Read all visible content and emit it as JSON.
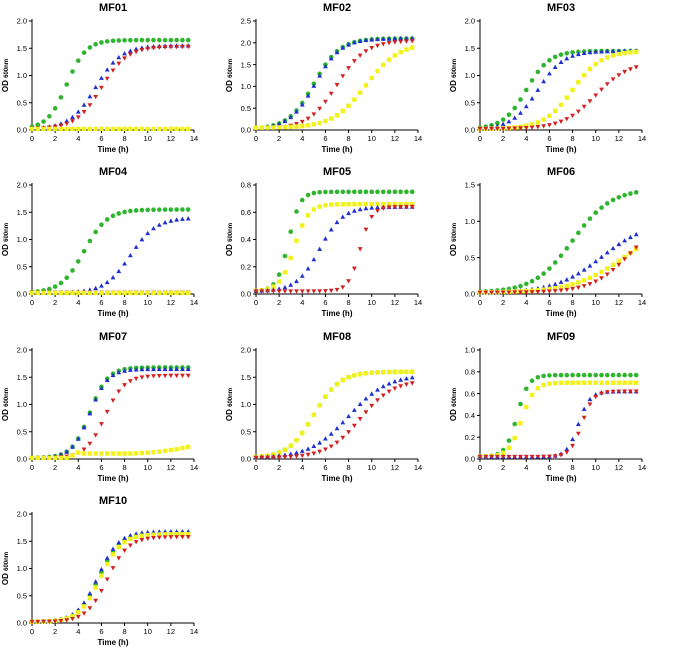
{
  "colors": {
    "green": "#2db52d",
    "blue": "#1f2fd1",
    "red": "#d42020",
    "yellow": "#f2f21a"
  },
  "axis_text": {
    "xlabel": "Time (h)",
    "ylabel_main": "OD",
    "ylabel_sub": "600nm"
  },
  "chart_data": [
    {
      "type": "scatter",
      "title": "MF01",
      "xlabel": "Time (h)",
      "ylabel": "OD 600nm",
      "xlim": [
        0,
        14
      ],
      "ylim": [
        0,
        2.0
      ],
      "xticks": [
        "0",
        "2",
        "4",
        "6",
        "8",
        "10",
        "12",
        "14"
      ],
      "yticks": [
        "0.0",
        "0.5",
        "1.0",
        "1.5",
        "2.0"
      ],
      "series": [
        {
          "name": "green",
          "model": {
            "type": "logistic",
            "K": 1.65,
            "r": 1.2,
            "t0": 3.0,
            "base": 0.02
          }
        },
        {
          "name": "blue",
          "model": {
            "type": "logistic",
            "K": 1.55,
            "r": 0.9,
            "t0": 5.5,
            "base": 0.02
          }
        },
        {
          "name": "red",
          "model": {
            "type": "logistic",
            "K": 1.53,
            "r": 0.9,
            "t0": 6.0,
            "base": 0.02
          }
        },
        {
          "name": "yellow",
          "model": {
            "type": "flat",
            "value": 0.02
          }
        }
      ]
    },
    {
      "type": "scatter",
      "title": "MF02",
      "xlabel": "Time (h)",
      "ylabel": "OD 600nm",
      "xlim": [
        0,
        14
      ],
      "ylim": [
        0,
        2.5
      ],
      "xticks": [
        "0",
        "2",
        "4",
        "6",
        "8",
        "10",
        "12",
        "14"
      ],
      "yticks": [
        "0.0",
        "0.5",
        "1.0",
        "1.5",
        "2.0",
        "2.5"
      ],
      "series": [
        {
          "name": "green",
          "model": {
            "type": "logistic",
            "K": 2.1,
            "r": 0.9,
            "t0": 5.0,
            "base": 0.02
          }
        },
        {
          "name": "blue",
          "model": {
            "type": "logistic",
            "K": 2.1,
            "r": 0.9,
            "t0": 5.1,
            "base": 0.02
          }
        },
        {
          "name": "red",
          "model": {
            "type": "logistic",
            "K": 2.05,
            "r": 0.8,
            "t0": 7.0,
            "base": 0.02
          }
        },
        {
          "name": "yellow",
          "model": {
            "type": "logistic",
            "K": 2.0,
            "r": 0.7,
            "t0": 9.5,
            "base": 0.05
          }
        }
      ]
    },
    {
      "type": "scatter",
      "title": "MF03",
      "xlabel": "Time (h)",
      "ylabel": "OD 600nm",
      "xlim": [
        0,
        14
      ],
      "ylim": [
        0,
        2.0
      ],
      "xticks": [
        "0",
        "2",
        "4",
        "6",
        "8",
        "10",
        "12",
        "14"
      ],
      "yticks": [
        "0.0",
        "0.5",
        "1.0",
        "1.5",
        "2.0"
      ],
      "series": [
        {
          "name": "green",
          "model": {
            "type": "logistic",
            "K": 1.45,
            "r": 1.0,
            "t0": 4.0,
            "base": 0.02
          }
        },
        {
          "name": "blue",
          "model": {
            "type": "logistic",
            "K": 1.45,
            "r": 0.9,
            "t0": 5.0,
            "base": 0.02
          }
        },
        {
          "name": "yellow",
          "model": {
            "type": "logistic",
            "K": 1.45,
            "r": 0.8,
            "t0": 8.0,
            "base": 0.02
          }
        },
        {
          "name": "red",
          "model": {
            "type": "logistic",
            "K": 1.25,
            "r": 0.7,
            "t0": 10.0,
            "base": 0.02
          }
        }
      ]
    },
    {
      "type": "scatter",
      "title": "MF04",
      "xlabel": "Time (h)",
      "ylabel": "OD 600nm",
      "xlim": [
        0,
        14
      ],
      "ylim": [
        0,
        2.0
      ],
      "xticks": [
        "0",
        "2",
        "4",
        "6",
        "8",
        "10",
        "12",
        "14"
      ],
      "yticks": [
        "0.0",
        "0.5",
        "1.0",
        "1.5",
        "2.0"
      ],
      "series": [
        {
          "name": "green",
          "model": {
            "type": "logistic",
            "K": 1.55,
            "r": 1.0,
            "t0": 4.5,
            "base": 0.02
          }
        },
        {
          "name": "blue",
          "model": {
            "type": "logistic",
            "K": 1.4,
            "r": 0.9,
            "t0": 8.5,
            "base": 0.02
          }
        },
        {
          "name": "red",
          "model": {
            "type": "flat",
            "value": 0.03
          }
        },
        {
          "name": "yellow",
          "model": {
            "type": "flat",
            "value": 0.02
          }
        }
      ]
    },
    {
      "type": "scatter",
      "title": "MF05",
      "xlabel": "Time (h)",
      "ylabel": "OD 600nm",
      "xlim": [
        0,
        14
      ],
      "ylim": [
        0,
        0.8
      ],
      "xticks": [
        "0",
        "2",
        "4",
        "6",
        "8",
        "10",
        "12",
        "14"
      ],
      "yticks": [
        "0.0",
        "0.2",
        "0.4",
        "0.6",
        "0.8"
      ],
      "series": [
        {
          "name": "green",
          "model": {
            "type": "logistic",
            "K": 0.75,
            "r": 2.0,
            "t0": 2.8,
            "base": 0.02
          }
        },
        {
          "name": "yellow",
          "model": {
            "type": "logistic",
            "K": 0.66,
            "r": 1.6,
            "t0": 3.3,
            "base": 0.02
          }
        },
        {
          "name": "blue",
          "model": {
            "type": "logistic",
            "K": 0.64,
            "r": 1.0,
            "t0": 5.5,
            "base": 0.02
          }
        },
        {
          "name": "red",
          "model": {
            "type": "logistic",
            "K": 0.64,
            "r": 2.0,
            "t0": 9.0,
            "base": 0.02
          }
        }
      ]
    },
    {
      "type": "scatter",
      "title": "MF06",
      "xlabel": "Time (h)",
      "ylabel": "OD 600nm",
      "xlim": [
        0,
        14
      ],
      "ylim": [
        0,
        1.5
      ],
      "xticks": [
        "0",
        "2",
        "4",
        "6",
        "8",
        "10",
        "12",
        "14"
      ],
      "yticks": [
        "0.0",
        "0.5",
        "1.0",
        "1.5"
      ],
      "series": [
        {
          "name": "green",
          "model": {
            "type": "logistic",
            "K": 1.45,
            "r": 0.6,
            "t0": 8.0,
            "base": 0.02
          }
        },
        {
          "name": "blue",
          "model": {
            "type": "logistic",
            "K": 1.0,
            "r": 0.5,
            "t0": 10.5,
            "base": 0.02
          }
        },
        {
          "name": "yellow",
          "model": {
            "type": "logistic",
            "K": 1.0,
            "r": 0.45,
            "t0": 12.5,
            "base": 0.02
          }
        },
        {
          "name": "red",
          "model": {
            "type": "logistic",
            "K": 1.1,
            "r": 0.6,
            "t0": 13.0,
            "base": 0.02
          }
        }
      ]
    },
    {
      "type": "scatter",
      "title": "MF07",
      "xlabel": "Time (h)",
      "ylabel": "OD 600nm",
      "xlim": [
        0,
        14
      ],
      "ylim": [
        0,
        2.0
      ],
      "xticks": [
        "0",
        "2",
        "4",
        "6",
        "8",
        "10",
        "12",
        "14"
      ],
      "yticks": [
        "0.0",
        "0.5",
        "1.0",
        "1.5",
        "2.0"
      ],
      "series": [
        {
          "name": "green",
          "model": {
            "type": "logistic",
            "K": 1.68,
            "r": 1.3,
            "t0": 5.0,
            "base": 0.02
          }
        },
        {
          "name": "blue",
          "model": {
            "type": "logistic",
            "K": 1.65,
            "r": 1.3,
            "t0": 5.0,
            "base": 0.02
          }
        },
        {
          "name": "red",
          "model": {
            "type": "logistic",
            "K": 1.53,
            "r": 1.2,
            "t0": 6.3,
            "base": 0.02
          }
        },
        {
          "name": "yellow",
          "model": {
            "type": "yellow07"
          }
        }
      ]
    },
    {
      "type": "scatter",
      "title": "MF08",
      "xlabel": "Time (h)",
      "ylabel": "OD 600nm",
      "xlim": [
        0,
        14
      ],
      "ylim": [
        0,
        2.0
      ],
      "xticks": [
        "0",
        "2",
        "4",
        "6",
        "8",
        "10",
        "12",
        "14"
      ],
      "yticks": [
        "0.0",
        "0.5",
        "1.0",
        "1.5",
        "2.0"
      ],
      "series": [
        {
          "name": "green",
          "model": {
            "type": "logistic",
            "K": 1.6,
            "r": 0.9,
            "t0": 5.0,
            "base": 0.02
          }
        },
        {
          "name": "yellow",
          "model": {
            "type": "logistic",
            "K": 1.6,
            "r": 0.9,
            "t0": 5.0,
            "base": 0.02
          }
        },
        {
          "name": "blue",
          "model": {
            "type": "logistic",
            "K": 1.55,
            "r": 0.6,
            "t0": 8.0,
            "base": 0.02
          }
        },
        {
          "name": "red",
          "model": {
            "type": "logistic",
            "K": 1.45,
            "r": 0.7,
            "t0": 9.0,
            "base": 0.02
          }
        }
      ]
    },
    {
      "type": "scatter",
      "title": "MF09",
      "xlabel": "Time (h)",
      "ylabel": "OD 600nm",
      "xlim": [
        0,
        14
      ],
      "ylim": [
        0,
        1.0
      ],
      "xticks": [
        "0",
        "2",
        "4",
        "6",
        "8",
        "10",
        "12",
        "14"
      ],
      "yticks": [
        "0.0",
        "0.2",
        "0.4",
        "0.6",
        "0.8",
        "1.0"
      ],
      "series": [
        {
          "name": "green",
          "model": {
            "type": "logistic",
            "K": 0.77,
            "r": 2.0,
            "t0": 3.2,
            "base": 0.02
          }
        },
        {
          "name": "yellow",
          "model": {
            "type": "logistic",
            "K": 0.7,
            "r": 1.8,
            "t0": 3.6,
            "base": 0.02
          }
        },
        {
          "name": "blue",
          "model": {
            "type": "logistic",
            "K": 0.62,
            "r": 2.0,
            "t0": 8.5,
            "base": 0.02
          }
        },
        {
          "name": "red",
          "model": {
            "type": "logistic",
            "K": 0.62,
            "r": 2.0,
            "t0": 8.8,
            "base": 0.02
          }
        }
      ]
    },
    {
      "type": "scatter",
      "title": "MF10",
      "xlabel": "Time (h)",
      "ylabel": "OD 600nm",
      "xlim": [
        0,
        14
      ],
      "ylim": [
        0,
        2.0
      ],
      "xticks": [
        "0",
        "2",
        "4",
        "6",
        "8",
        "10",
        "12",
        "14"
      ],
      "yticks": [
        "0.0",
        "0.5",
        "1.0",
        "1.5",
        "2.0"
      ],
      "series": [
        {
          "name": "green",
          "model": {
            "type": "logistic",
            "K": 1.65,
            "r": 1.1,
            "t0": 5.8,
            "base": 0.02
          }
        },
        {
          "name": "blue",
          "model": {
            "type": "logistic",
            "K": 1.68,
            "r": 1.1,
            "t0": 5.7,
            "base": 0.02
          }
        },
        {
          "name": "yellow",
          "model": {
            "type": "logistic",
            "K": 1.63,
            "r": 1.1,
            "t0": 5.9,
            "base": 0.02
          }
        },
        {
          "name": "red",
          "model": {
            "type": "logistic",
            "K": 1.58,
            "r": 1.1,
            "t0": 6.5,
            "base": 0.02
          }
        }
      ]
    }
  ]
}
